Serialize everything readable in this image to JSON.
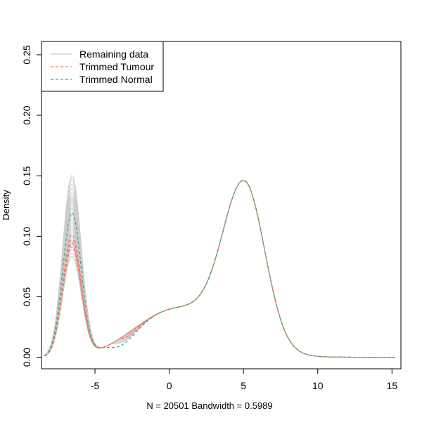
{
  "chart_data": {
    "type": "line",
    "title": "",
    "xlabel": "N = 20501   Bandwidth = 0.5989",
    "ylabel": "Density",
    "xlim": [
      -8.6,
      15.6
    ],
    "ylim": [
      -0.0095,
      0.261
    ],
    "x_ticks": [
      -5,
      0,
      5,
      10,
      15
    ],
    "x_tick_labels": [
      "-5",
      "0",
      "5",
      "10",
      "15"
    ],
    "y_ticks": [
      0.0,
      0.05,
      0.1,
      0.15,
      0.2,
      0.25
    ],
    "y_tick_labels": [
      "0.00",
      "0.05",
      "0.10",
      "0.15",
      "0.20",
      "0.25"
    ],
    "grid": false,
    "legend_position": "top-left",
    "legend": [
      {
        "label": "Remaining data",
        "color": "#cccccc",
        "dash": "solid"
      },
      {
        "label": "Trimmed Tumour",
        "color": "#f07b6d",
        "dash": "dashed"
      },
      {
        "label": "Trimmed Normal",
        "color": "#3aa77a",
        "dash": "dashed"
      }
    ],
    "curve_model": {
      "description_of_shape": "bimodal density: narrow low-expression peak near x=-6.6 and broad peak near x=5.1",
      "right_peak_center": 5.1,
      "right_peak_height": 0.1288
    },
    "series": [
      {
        "group": "Remaining data",
        "left_peak_height": 0.149,
        "valley_min": 0.014
      },
      {
        "group": "Remaining data",
        "left_peak_height": 0.146,
        "valley_min": 0.012
      },
      {
        "group": "Remaining data",
        "left_peak_height": 0.142,
        "valley_min": 0.016
      },
      {
        "group": "Remaining data",
        "left_peak_height": 0.138,
        "valley_min": 0.018
      },
      {
        "group": "Remaining data",
        "left_peak_height": 0.135,
        "valley_min": 0.011
      },
      {
        "group": "Remaining data",
        "left_peak_height": 0.132,
        "valley_min": 0.02
      },
      {
        "group": "Remaining data",
        "left_peak_height": 0.13,
        "valley_min": 0.013
      },
      {
        "group": "Remaining data",
        "left_peak_height": 0.128,
        "valley_min": 0.022
      },
      {
        "group": "Remaining data",
        "left_peak_height": 0.126,
        "valley_min": 0.015
      },
      {
        "group": "Remaining data",
        "left_peak_height": 0.124,
        "valley_min": 0.024
      },
      {
        "group": "Remaining data",
        "left_peak_height": 0.122,
        "valley_min": 0.017
      },
      {
        "group": "Remaining data",
        "left_peak_height": 0.12,
        "valley_min": 0.026
      },
      {
        "group": "Remaining data",
        "left_peak_height": 0.118,
        "valley_min": 0.019
      },
      {
        "group": "Remaining data",
        "left_peak_height": 0.116,
        "valley_min": 0.025
      },
      {
        "group": "Remaining data",
        "left_peak_height": 0.114,
        "valley_min": 0.021
      },
      {
        "group": "Remaining data",
        "left_peak_height": 0.112,
        "valley_min": 0.027
      },
      {
        "group": "Remaining data",
        "left_peak_height": 0.11,
        "valley_min": 0.023
      },
      {
        "group": "Remaining data",
        "left_peak_height": 0.108,
        "valley_min": 0.028
      },
      {
        "group": "Remaining data",
        "left_peak_height": 0.106,
        "valley_min": 0.024
      },
      {
        "group": "Remaining data",
        "left_peak_height": 0.104,
        "valley_min": 0.026
      },
      {
        "group": "Remaining data",
        "left_peak_height": 0.102,
        "valley_min": 0.029
      },
      {
        "group": "Remaining data",
        "left_peak_height": 0.1,
        "valley_min": 0.027
      },
      {
        "group": "Remaining data",
        "left_peak_height": 0.098,
        "valley_min": 0.03
      },
      {
        "group": "Remaining data",
        "left_peak_height": 0.096,
        "valley_min": 0.028
      },
      {
        "group": "Remaining data",
        "left_peak_height": 0.094,
        "valley_min": 0.031
      },
      {
        "group": "Remaining data",
        "left_peak_height": 0.092,
        "valley_min": 0.029
      },
      {
        "group": "Remaining data",
        "left_peak_height": 0.09,
        "valley_min": 0.031
      },
      {
        "group": "Remaining data",
        "left_peak_height": 0.088,
        "valley_min": 0.03
      },
      {
        "group": "Remaining data",
        "left_peak_height": 0.085,
        "valley_min": 0.032
      },
      {
        "group": "Remaining data",
        "left_peak_height": 0.082,
        "valley_min": 0.031
      },
      {
        "group": "Trimmed Tumour",
        "left_peak_height": 0.1,
        "valley_min": 0.022
      },
      {
        "group": "Trimmed Tumour",
        "left_peak_height": 0.096,
        "valley_min": 0.015
      },
      {
        "group": "Trimmed Tumour",
        "left_peak_height": 0.093,
        "valley_min": 0.028
      },
      {
        "group": "Trimmed Tumour",
        "left_peak_height": 0.09,
        "valley_min": 0.025
      },
      {
        "group": "Trimmed Normal",
        "left_peak_height": 0.118,
        "valley_min": 0.008
      }
    ]
  }
}
